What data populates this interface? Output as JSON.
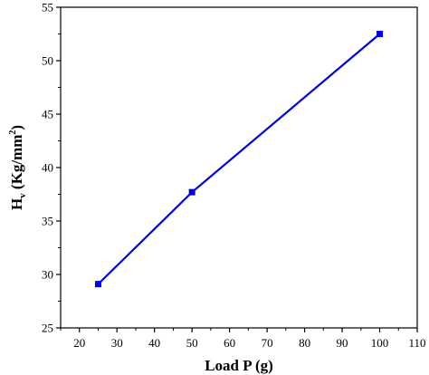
{
  "chart_data": {
    "type": "line",
    "title": "",
    "xlabel": "Load P (g)",
    "ylabel": {
      "main": "H",
      "subscript": "v",
      "unit_open": " (Kg/mm",
      "unit_sup": "2",
      "unit_close": ")"
    },
    "xlim": [
      15,
      110
    ],
    "ylim": [
      25,
      55
    ],
    "xticks": [
      20,
      30,
      40,
      50,
      60,
      70,
      80,
      90,
      100,
      110
    ],
    "xtick_labels": [
      "20",
      "30",
      "40",
      "50",
      "60",
      "70",
      "80",
      "90",
      "100",
      "110"
    ],
    "yticks": [
      25,
      30,
      35,
      40,
      45,
      50,
      55
    ],
    "ytick_labels": [
      "25",
      "30",
      "35",
      "40",
      "45",
      "50",
      "55"
    ],
    "grid": false,
    "legend": "none",
    "series": [
      {
        "color": "#0000ee",
        "marker": "square",
        "x": [
          25,
          50,
          100
        ],
        "y": [
          29.1,
          37.7,
          52.5
        ]
      }
    ]
  }
}
